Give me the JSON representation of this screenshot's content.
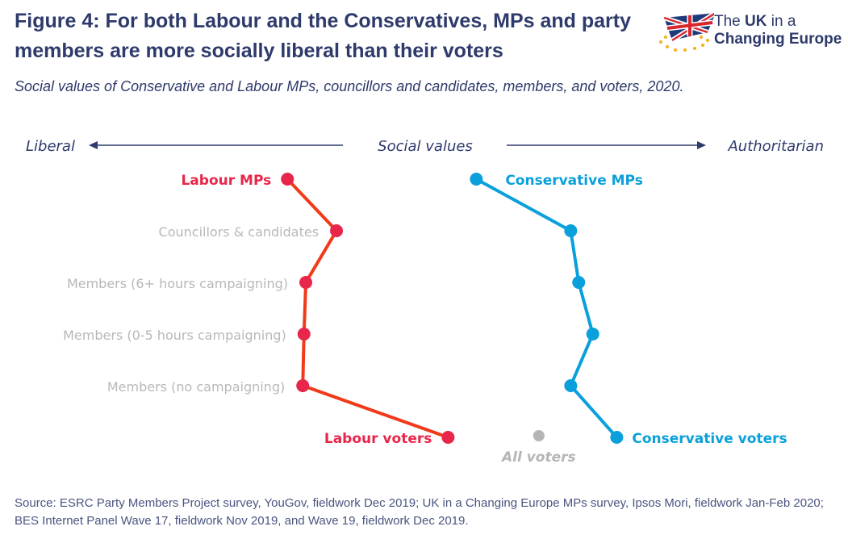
{
  "title": "Figure 4: For both Labour and the Conservatives, MPs and party members are more socially liberal than their voters",
  "subtitle": "Social values of Conservative and Labour MPs, councillors and candidates, members, and voters, 2020.",
  "logo": {
    "line1_a": "The ",
    "line1_b": "UK",
    "line1_c": " in a",
    "line2": "Changing Europe"
  },
  "source": "Source: ESRC Party Members Project survey, YouGov, fieldwork Dec 2019; UK in a Changing Europe MPs survey, Ipsos Mori, fieldwork Jan-Feb 2020; BES Internet Panel Wave 17, fieldwork Nov 2019, and Wave 19, fieldwork Dec 2019.",
  "chart_data": {
    "type": "line",
    "axis": {
      "left_label": "Liberal",
      "center_label": "Social values",
      "right_label": "Authoritarian",
      "xlim": [
        0,
        10
      ],
      "note": "approximate index, not labelled in original"
    },
    "categories": [
      "MPs",
      "Councillors & candidates",
      "Members (6+ hours campaigning)",
      "Members (0-5 hours campaigning)",
      "Members (no campaigning)",
      "Voters"
    ],
    "series": [
      {
        "name": "Labour",
        "color": "#e8264a",
        "line_color": "#f03a1a",
        "labels": {
          "MPs": "Labour MPs",
          "Voters": "Labour voters"
        },
        "values": [
          3.24,
          4.04,
          3.54,
          3.51,
          3.49,
          5.86
        ]
      },
      {
        "name": "Conservative",
        "color": "#0aa0dc",
        "line_color": "#0aa0dc",
        "labels": {
          "MPs": "Conservative MPs",
          "Voters": "Conservative voters"
        },
        "values": [
          6.32,
          7.86,
          7.99,
          8.22,
          7.86,
          8.61
        ]
      }
    ],
    "all_voters": {
      "label": "All voters",
      "value": 7.34,
      "color": "#b5b5b5"
    },
    "category_label_color": "#b8b8b8"
  }
}
